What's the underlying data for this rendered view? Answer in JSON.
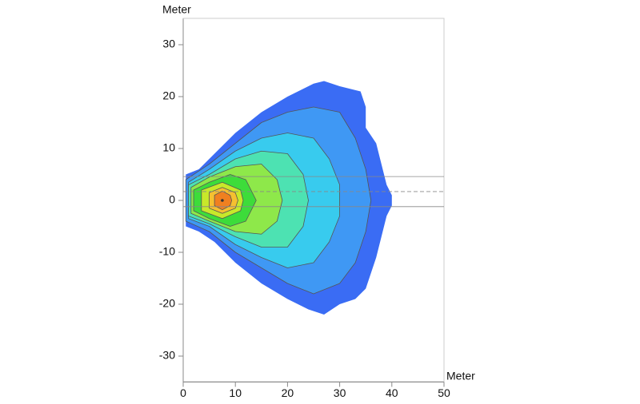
{
  "chart_data": {
    "type": "contour",
    "y_label": "Meter",
    "x_label": "Meter",
    "xlim": [
      0,
      50
    ],
    "ylim": [
      -35,
      35
    ],
    "xticks": [
      0,
      10,
      20,
      30,
      40,
      50
    ],
    "yticks": [
      -30,
      -20,
      -10,
      0,
      10,
      20,
      30
    ],
    "contours": [
      {
        "color": "#3a6cf4",
        "x": [
          0.5,
          3,
          6,
          10,
          15,
          20,
          25,
          27,
          30,
          34,
          35,
          35,
          37,
          38,
          39,
          40,
          40,
          39,
          38,
          37,
          36,
          35,
          33,
          30,
          27,
          24,
          20,
          15,
          10,
          6,
          3,
          0.5
        ],
        "y": [
          5,
          6,
          9,
          13,
          17,
          20,
          22.5,
          23,
          22,
          21,
          18,
          14,
          11,
          7,
          3,
          1,
          -1,
          -3,
          -7,
          -11,
          -14,
          -17,
          -19,
          -20,
          -22,
          -21,
          -19,
          -16,
          -12,
          -8,
          -6,
          -5
        ]
      },
      {
        "color": "#3f98f4",
        "x": [
          0.5,
          5,
          10,
          15,
          20,
          25,
          30,
          33,
          35,
          36,
          35,
          33,
          30,
          25,
          20,
          15,
          10,
          5,
          0.5
        ],
        "y": [
          4,
          7,
          11,
          15,
          17,
          18,
          17,
          12,
          6,
          0,
          -6,
          -12,
          -16,
          -18,
          -16,
          -13,
          -10,
          -6,
          -4
        ]
      },
      {
        "color": "#38cbee",
        "x": [
          1,
          5,
          10,
          15,
          20,
          25,
          28,
          30,
          30,
          28,
          25,
          20,
          15,
          10,
          5,
          1
        ],
        "y": [
          3.5,
          6,
          9.5,
          12,
          13,
          12,
          8,
          3,
          -3,
          -8,
          -12,
          -13,
          -11,
          -8.5,
          -5,
          -3.5
        ]
      },
      {
        "color": "#4de2b2",
        "x": [
          1,
          5,
          10,
          15,
          20,
          23,
          24,
          23,
          20,
          15,
          10,
          5,
          1
        ],
        "y": [
          3,
          5,
          8,
          9.5,
          9,
          5,
          0,
          -5,
          -9,
          -9,
          -7,
          -4.5,
          -3
        ]
      },
      {
        "color": "#8ee84a",
        "x": [
          1.5,
          5,
          10,
          15,
          18,
          19,
          18,
          15,
          10,
          5,
          1.5
        ],
        "y": [
          2.5,
          4.5,
          6.5,
          7,
          4,
          0,
          -4,
          -6.5,
          -6,
          -4,
          -2.5
        ]
      },
      {
        "color": "#3ddc3a",
        "x": [
          2,
          5,
          9,
          12,
          14,
          12,
          9,
          5,
          2
        ],
        "y": [
          2,
          3.5,
          5,
          4,
          0,
          -4,
          -5,
          -3.5,
          -2
        ]
      },
      {
        "color": "#c8e82a",
        "x": [
          3.5,
          7.5,
          11,
          11.5,
          11,
          7.5,
          3.5
        ],
        "y": [
          2,
          3.5,
          2,
          0,
          -2,
          -3.5,
          -2
        ]
      },
      {
        "color": "#f5c030",
        "x": [
          5,
          7.5,
          10,
          10.5,
          10,
          7.5,
          5
        ],
        "y": [
          1.5,
          2.5,
          1.5,
          0,
          -1.5,
          -2.5,
          -1.5
        ]
      },
      {
        "color": "#f08020",
        "x": [
          6,
          7.5,
          9,
          9.3,
          9,
          7.5,
          6
        ],
        "y": [
          1,
          1.8,
          1,
          0,
          -1,
          -1.8,
          -1
        ]
      }
    ],
    "peak": {
      "x": 7.5,
      "y": 0
    },
    "reference_lines": [
      {
        "y": 4.6,
        "style": "solid"
      },
      {
        "y": 1.7,
        "style": "dashed"
      },
      {
        "y": -1.2,
        "style": "solid"
      }
    ]
  }
}
